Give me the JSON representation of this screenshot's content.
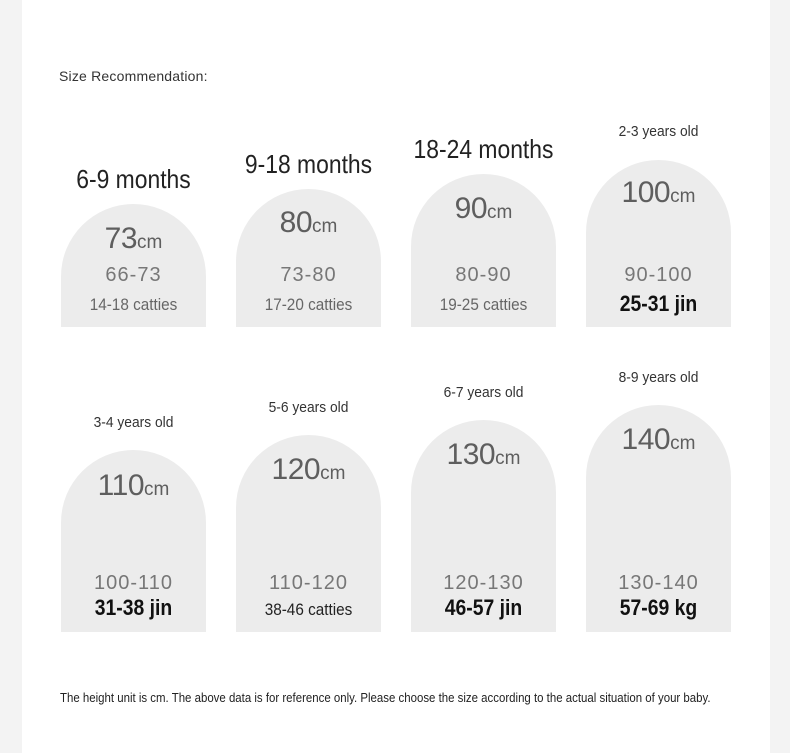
{
  "heading": "Size Recommendation:",
  "cards": [
    {
      "age": "6-9 months",
      "height": "73",
      "unit": "cm",
      "range": "66-73",
      "weight": "14-18 catties"
    },
    {
      "age": "9-18 months",
      "height": "80",
      "unit": "cm",
      "range": "73-80",
      "weight": "17-20 catties"
    },
    {
      "age": "18-24 months",
      "height": "90",
      "unit": "cm",
      "range": "80-90",
      "weight": "19-25 catties"
    },
    {
      "age": "2-3 years old",
      "height": "100",
      "unit": "cm",
      "range": "90-100",
      "weight": "25-31 jin"
    },
    {
      "age": "3-4 years old",
      "height": "110",
      "unit": "cm",
      "range": "100-110",
      "weight": "31-38 jin"
    },
    {
      "age": "5-6 years old",
      "height": "120",
      "unit": "cm",
      "range": "110-120",
      "weight": "38-46 catties"
    },
    {
      "age": "6-7 years old",
      "height": "130",
      "unit": "cm",
      "range": "120-130",
      "weight": "46-57 jin"
    },
    {
      "age": "8-9 years old",
      "height": "140",
      "unit": "cm",
      "range": "130-140",
      "weight": "57-69 kg"
    }
  ],
  "footnote": "The height unit is cm. The above data is for reference only. Please choose the size according to the actual situation of your baby."
}
